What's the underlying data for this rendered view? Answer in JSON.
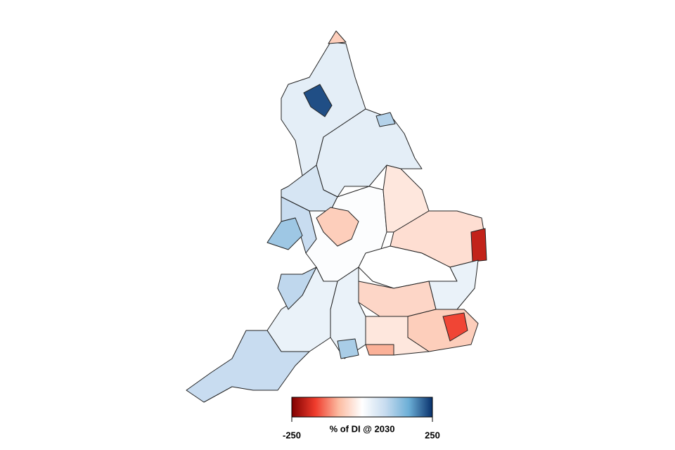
{
  "chart_data": {
    "type": "choropleth",
    "legend_label": "% of DI @ 2030",
    "clim": [
      -250,
      250
    ],
    "ticks": [
      -250,
      250
    ],
    "colorscale": [
      "#7f0000",
      "#ef3b2c",
      "#fcbba1",
      "#ffffff",
      "#c6dbef",
      "#6baed6",
      "#08306b"
    ],
    "values": [
      40,
      -60,
      230,
      40,
      100,
      60,
      80,
      120,
      5,
      -60,
      -30,
      -40,
      -200,
      0,
      30,
      -50,
      -60,
      -160,
      -30,
      30,
      110,
      -90,
      30,
      90,
      80
    ]
  }
}
